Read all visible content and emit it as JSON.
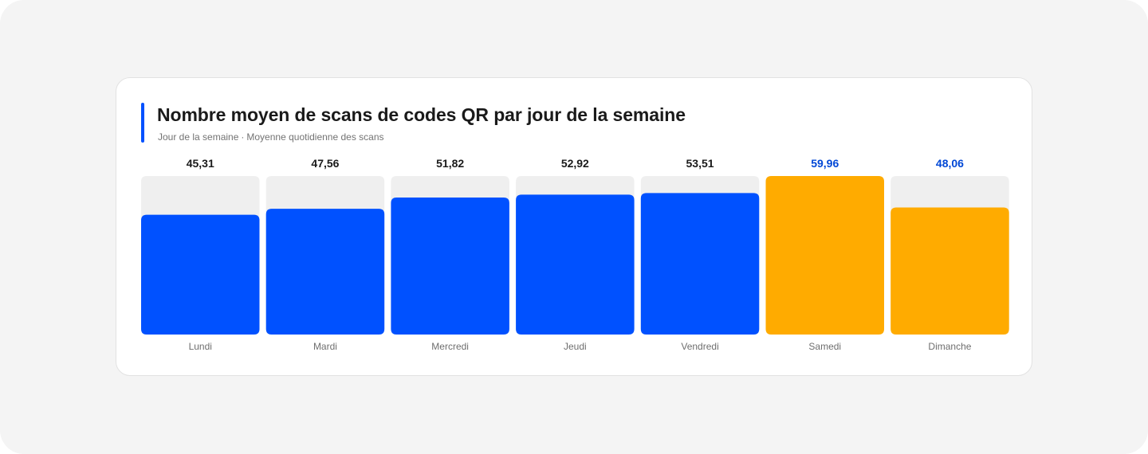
{
  "chart_data": {
    "type": "bar",
    "title": "Nombre moyen de scans de codes QR par jour de la semaine",
    "subtitle_parts": [
      "Jour de la semaine",
      "Moyenne quotidienne des scans"
    ],
    "subtitle_separator": "·",
    "xlabel": "Jour de la semaine",
    "ylabel": "Moyenne quotidienne des scans",
    "categories": [
      "Lundi",
      "Mardi",
      "Mercredi",
      "Jeudi",
      "Vendredi",
      "Samedi",
      "Dimanche"
    ],
    "values": [
      45.31,
      47.56,
      51.82,
      52.92,
      53.51,
      59.96,
      48.06
    ],
    "value_labels": [
      "45,31",
      "47,56",
      "51,82",
      "52,92",
      "53,51",
      "59,96",
      "48,06"
    ],
    "highlighted": [
      false,
      false,
      false,
      false,
      false,
      true,
      true
    ],
    "ylim": [
      0,
      59.96
    ],
    "grid": false,
    "colors": {
      "bar": "#0051ff",
      "highlight_bar": "#ffab00",
      "track": "#efefef",
      "value_label": "#1a1a1a",
      "highlight_value_label": "#0047d6",
      "category_label": "#6e6e6e",
      "accent": "#0051ff"
    }
  }
}
